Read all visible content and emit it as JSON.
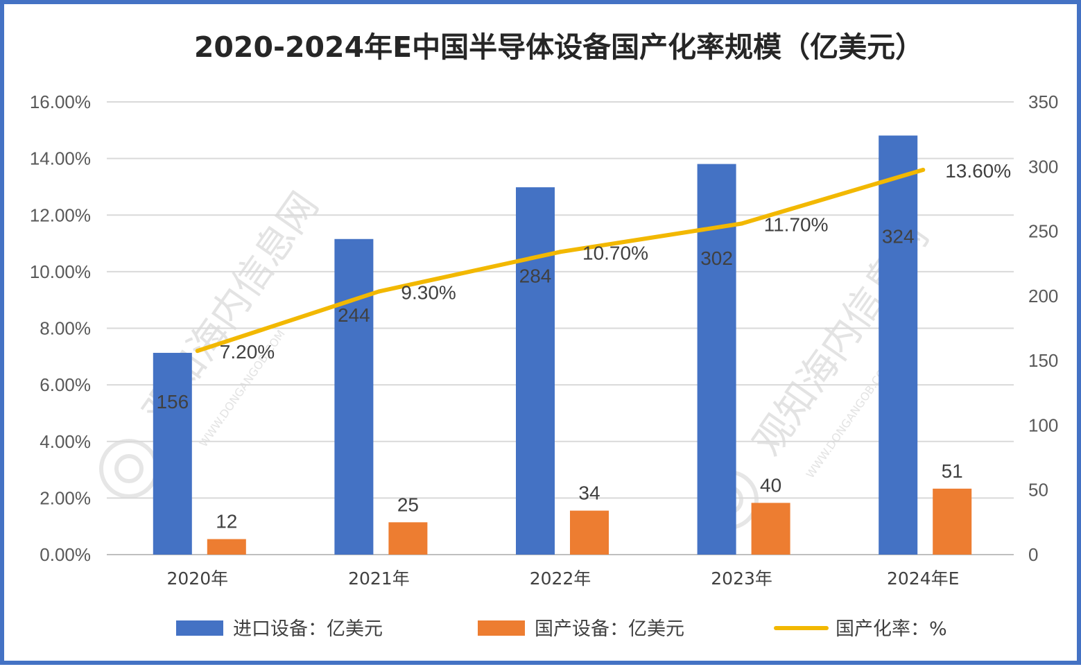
{
  "chart_data": {
    "type": "bar",
    "title": "2020-2024年E中国半导体设备国产化率规模（亿美元）",
    "categories": [
      "2020年",
      "2021年",
      "2022年",
      "2023年",
      "2024年E"
    ],
    "series": [
      {
        "name": "进口设备：亿美元",
        "type": "bar",
        "axis": "right",
        "color": "#4472c4",
        "values": [
          156,
          244,
          284,
          302,
          324
        ]
      },
      {
        "name": "国产设备：亿美元",
        "type": "bar",
        "axis": "right",
        "color": "#ed7d31",
        "values": [
          12,
          25,
          34,
          40,
          51
        ]
      },
      {
        "name": "国产化率：%",
        "type": "line",
        "axis": "left",
        "color": "#f2b800",
        "values": [
          7.2,
          9.3,
          10.7,
          11.7,
          13.6
        ]
      }
    ],
    "line_labels": [
      "7.20%",
      "9.30%",
      "10.70%",
      "11.70%",
      "13.60%"
    ],
    "y_left": {
      "min": 0,
      "max": 16,
      "step": 2,
      "tick_labels": [
        "0.00%",
        "2.00%",
        "4.00%",
        "6.00%",
        "8.00%",
        "10.00%",
        "12.00%",
        "14.00%",
        "16.00%"
      ]
    },
    "y_right": {
      "min": 0,
      "max": 350,
      "step": 50,
      "tick_labels": [
        "0",
        "50",
        "100",
        "150",
        "200",
        "250",
        "300",
        "350"
      ]
    },
    "grid": true,
    "legend_position": "bottom"
  },
  "watermark": {
    "text": "观知海内信息网",
    "sub": "WWW.DONGANGOB.COM"
  }
}
